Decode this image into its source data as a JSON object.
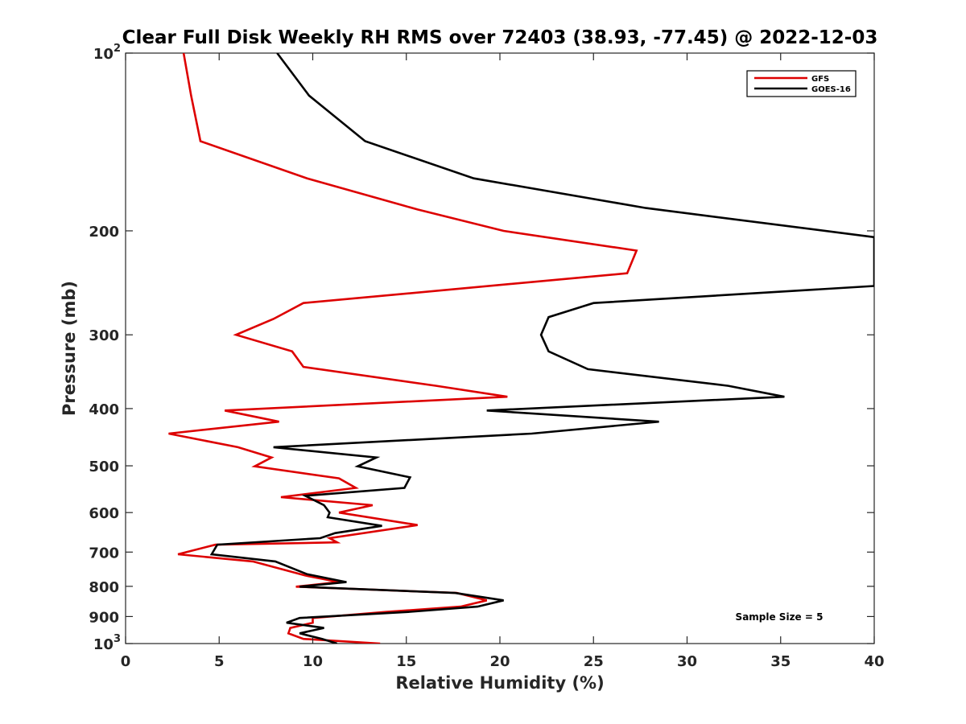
{
  "chart_data": {
    "type": "line",
    "title": "Clear Full Disk Weekly RH RMS over 72403 (38.93, -77.45) @ 2022-12-03",
    "xlabel": "Relative Humidity (%)",
    "ylabel": "Pressure (mb)",
    "xlim": [
      0,
      40
    ],
    "ylim": [
      100,
      1000
    ],
    "yscale": "log",
    "y_reversed": true,
    "grid": false,
    "legend_position": "top-right",
    "x_ticks": [
      {
        "value": 0,
        "label": "0"
      },
      {
        "value": 5,
        "label": "5"
      },
      {
        "value": 10,
        "label": "10"
      },
      {
        "value": 15,
        "label": "15"
      },
      {
        "value": 20,
        "label": "20"
      },
      {
        "value": 25,
        "label": "25"
      },
      {
        "value": 30,
        "label": "30"
      },
      {
        "value": 35,
        "label": "35"
      },
      {
        "value": 40,
        "label": "40"
      }
    ],
    "y_ticks": [
      {
        "value": 100,
        "base": "10",
        "exp": "2"
      },
      {
        "value": 200,
        "base": "200",
        "exp": ""
      },
      {
        "value": 300,
        "base": "300",
        "exp": ""
      },
      {
        "value": 400,
        "base": "400",
        "exp": ""
      },
      {
        "value": 500,
        "base": "500",
        "exp": ""
      },
      {
        "value": 600,
        "base": "600",
        "exp": ""
      },
      {
        "value": 700,
        "base": "700",
        "exp": ""
      },
      {
        "value": 800,
        "base": "800",
        "exp": ""
      },
      {
        "value": 900,
        "base": "900",
        "exp": ""
      },
      {
        "value": 1000,
        "base": "10",
        "exp": "3"
      }
    ],
    "series": [
      {
        "name": "GFS",
        "color": "#dd0000",
        "points": [
          [
            3.1,
            100
          ],
          [
            3.5,
            118
          ],
          [
            4.0,
            141
          ],
          [
            9.7,
            163
          ],
          [
            15.6,
            184
          ],
          [
            20.2,
            200
          ],
          [
            27.3,
            216
          ],
          [
            26.8,
            236
          ],
          [
            9.5,
            265
          ],
          [
            7.9,
            282
          ],
          [
            5.9,
            300
          ],
          [
            8.9,
            320
          ],
          [
            9.5,
            340
          ],
          [
            16.6,
            366
          ],
          [
            20.4,
            382
          ],
          [
            5.3,
            403
          ],
          [
            8.2,
            421
          ],
          [
            2.3,
            441
          ],
          [
            6.0,
            465
          ],
          [
            7.8,
            484
          ],
          [
            6.9,
            501
          ],
          [
            11.4,
            525
          ],
          [
            12.3,
            545
          ],
          [
            8.3,
            565
          ],
          [
            13.2,
            583
          ],
          [
            11.4,
            600
          ],
          [
            15.6,
            630
          ],
          [
            10.9,
            663
          ],
          [
            11.3,
            674
          ],
          [
            4.8,
            680
          ],
          [
            2.8,
            706
          ],
          [
            6.8,
            726
          ],
          [
            9.6,
            767
          ],
          [
            11.4,
            787
          ],
          [
            9.1,
            801
          ],
          [
            17.7,
            821
          ],
          [
            19.3,
            845
          ],
          [
            17.9,
            866
          ],
          [
            13.9,
            884
          ],
          [
            10.0,
            905
          ],
          [
            10.0,
            922
          ],
          [
            8.8,
            941
          ],
          [
            8.7,
            961
          ],
          [
            9.5,
            982
          ],
          [
            13.6,
            1000
          ]
        ]
      },
      {
        "name": "GOES-16",
        "color": "#000000",
        "points": [
          [
            8.1,
            100
          ],
          [
            9.8,
            118
          ],
          [
            12.8,
            141
          ],
          [
            18.6,
            163
          ],
          [
            27.8,
            183
          ],
          [
            40.0,
            205
          ],
          [
            40.0,
            248
          ],
          [
            25.0,
            265
          ],
          [
            22.6,
            280
          ],
          [
            22.2,
            300
          ],
          [
            22.6,
            320
          ],
          [
            24.7,
            343
          ],
          [
            32.2,
            366
          ],
          [
            35.2,
            382
          ],
          [
            19.3,
            403
          ],
          [
            28.5,
            421
          ],
          [
            21.7,
            441
          ],
          [
            7.9,
            465
          ],
          [
            13.4,
            484
          ],
          [
            12.4,
            501
          ],
          [
            15.2,
            523
          ],
          [
            14.9,
            545
          ],
          [
            9.6,
            562
          ],
          [
            10.6,
            583
          ],
          [
            10.9,
            600
          ],
          [
            10.8,
            611
          ],
          [
            13.7,
            632
          ],
          [
            11.2,
            650
          ],
          [
            10.4,
            663
          ],
          [
            4.9,
            680
          ],
          [
            4.6,
            706
          ],
          [
            8.0,
            726
          ],
          [
            9.7,
            763
          ],
          [
            11.8,
            787
          ],
          [
            9.3,
            801
          ],
          [
            17.6,
            821
          ],
          [
            20.2,
            845
          ],
          [
            18.8,
            866
          ],
          [
            15.1,
            884
          ],
          [
            9.3,
            905
          ],
          [
            8.6,
            922
          ],
          [
            10.6,
            941
          ],
          [
            9.3,
            961
          ],
          [
            10.5,
            982
          ],
          [
            11.3,
            1000
          ]
        ]
      }
    ],
    "annotations": [
      {
        "text": "Sample Size = 5"
      }
    ]
  }
}
